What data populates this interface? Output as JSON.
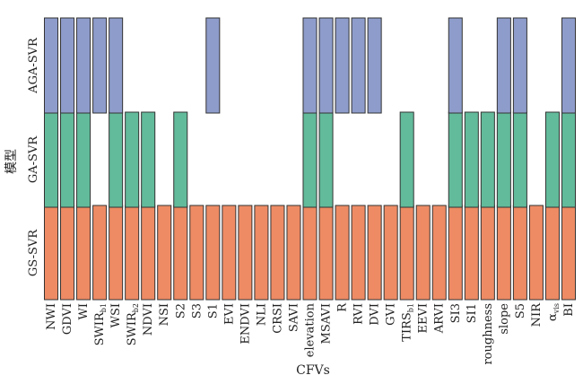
{
  "chart_data": {
    "type": "bar",
    "xlabel": "CFVs",
    "ylabel": "模型",
    "model_order": [
      "GS-SVR",
      "GA-SVR",
      "AGA-SVR"
    ],
    "categories": [
      "NWI",
      "GDVI",
      "WI",
      "SWIR_b1",
      "WSI",
      "SWIR_b2",
      "NDVI",
      "NSI",
      "S2",
      "S3",
      "S1",
      "EVI",
      "ENDVI",
      "NLI",
      "CRSI",
      "SAVI",
      "elevation",
      "MSAVI",
      "R",
      "RVI",
      "DVI",
      "GVI",
      "TIRS_b1",
      "EEVI",
      "ARVI",
      "SI3",
      "SI1",
      "roughness",
      "slope",
      "S5",
      "NIR",
      "α_vis",
      "BI"
    ],
    "tick_labels": [
      {
        "base": "NWI",
        "sub": ""
      },
      {
        "base": "GDVI",
        "sub": ""
      },
      {
        "base": "WI",
        "sub": ""
      },
      {
        "base": "SWIR",
        "sub": "b1"
      },
      {
        "base": "WSI",
        "sub": ""
      },
      {
        "base": "SWIR",
        "sub": "b2"
      },
      {
        "base": "NDVI",
        "sub": ""
      },
      {
        "base": "NSI",
        "sub": ""
      },
      {
        "base": "S2",
        "sub": ""
      },
      {
        "base": "S3",
        "sub": ""
      },
      {
        "base": "S1",
        "sub": ""
      },
      {
        "base": "EVI",
        "sub": ""
      },
      {
        "base": "ENDVI",
        "sub": ""
      },
      {
        "base": "NLI",
        "sub": ""
      },
      {
        "base": "CRSI",
        "sub": ""
      },
      {
        "base": "SAVI",
        "sub": ""
      },
      {
        "base": "elevation",
        "sub": ""
      },
      {
        "base": "MSAVI",
        "sub": ""
      },
      {
        "base": "R",
        "sub": ""
      },
      {
        "base": "RVI",
        "sub": ""
      },
      {
        "base": "DVI",
        "sub": ""
      },
      {
        "base": "GVI",
        "sub": ""
      },
      {
        "base": "TIRS",
        "sub": "b1"
      },
      {
        "base": "EEVI",
        "sub": ""
      },
      {
        "base": "ARVI",
        "sub": ""
      },
      {
        "base": "SI3",
        "sub": ""
      },
      {
        "base": "SI1",
        "sub": ""
      },
      {
        "base": "roughness",
        "sub": ""
      },
      {
        "base": "slope",
        "sub": ""
      },
      {
        "base": "S5",
        "sub": ""
      },
      {
        "base": "NIR",
        "sub": ""
      },
      {
        "base": "α",
        "sub": "vis"
      },
      {
        "base": "BI",
        "sub": ""
      }
    ],
    "series": [
      {
        "name": "GS-SVR",
        "color": "#EE8B64",
        "values": [
          1,
          1,
          1,
          1,
          1,
          1,
          1,
          1,
          1,
          1,
          1,
          1,
          1,
          1,
          1,
          1,
          1,
          1,
          1,
          1,
          1,
          1,
          1,
          1,
          1,
          1,
          1,
          1,
          1,
          1,
          1,
          1,
          1
        ]
      },
      {
        "name": "GA-SVR",
        "color": "#62BB9B",
        "values": [
          1,
          1,
          1,
          0,
          1,
          1,
          1,
          0,
          1,
          0,
          0,
          0,
          0,
          0,
          0,
          0,
          1,
          1,
          0,
          0,
          0,
          0,
          1,
          0,
          0,
          1,
          1,
          1,
          1,
          1,
          0,
          1,
          1
        ]
      },
      {
        "name": "AGA-SVR",
        "color": "#8E9CCB",
        "values": [
          1,
          1,
          1,
          1,
          1,
          0,
          0,
          0,
          0,
          0,
          1,
          0,
          0,
          0,
          0,
          0,
          1,
          1,
          1,
          1,
          1,
          0,
          0,
          0,
          0,
          1,
          0,
          0,
          1,
          1,
          0,
          0,
          1
        ]
      }
    ]
  }
}
